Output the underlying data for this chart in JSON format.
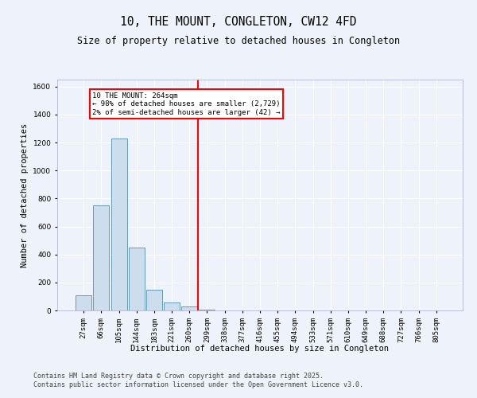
{
  "title": "10, THE MOUNT, CONGLETON, CW12 4FD",
  "subtitle": "Size of property relative to detached houses in Congleton",
  "xlabel": "Distribution of detached houses by size in Congleton",
  "ylabel": "Number of detached properties",
  "footer_line1": "Contains HM Land Registry data © Crown copyright and database right 2025.",
  "footer_line2": "Contains public sector information licensed under the Open Government Licence v3.0.",
  "categories": [
    "27sqm",
    "66sqm",
    "105sqm",
    "144sqm",
    "183sqm",
    "221sqm",
    "260sqm",
    "299sqm",
    "338sqm",
    "377sqm",
    "416sqm",
    "455sqm",
    "494sqm",
    "533sqm",
    "571sqm",
    "610sqm",
    "649sqm",
    "688sqm",
    "727sqm",
    "766sqm",
    "805sqm"
  ],
  "values": [
    110,
    750,
    1230,
    450,
    150,
    55,
    30,
    8,
    2,
    0,
    0,
    0,
    0,
    0,
    0,
    0,
    0,
    0,
    0,
    0,
    0
  ],
  "bar_color": "#ccdded",
  "bar_edge_color": "#6699bb",
  "vline_color": "red",
  "vline_position": 6.5,
  "annotation_text": "10 THE MOUNT: 264sqm\n← 98% of detached houses are smaller (2,729)\n2% of semi-detached houses are larger (42) →",
  "annotation_box_color": "red",
  "annotation_text_color": "black",
  "ylim": [
    0,
    1650
  ],
  "yticks": [
    0,
    200,
    400,
    600,
    800,
    1000,
    1200,
    1400,
    1600
  ],
  "background_color": "#eef2fb",
  "grid_color": "#ffffff",
  "title_fontsize": 10.5,
  "subtitle_fontsize": 8.5,
  "axis_label_fontsize": 7.5,
  "tick_fontsize": 6.5,
  "footer_fontsize": 6.0
}
